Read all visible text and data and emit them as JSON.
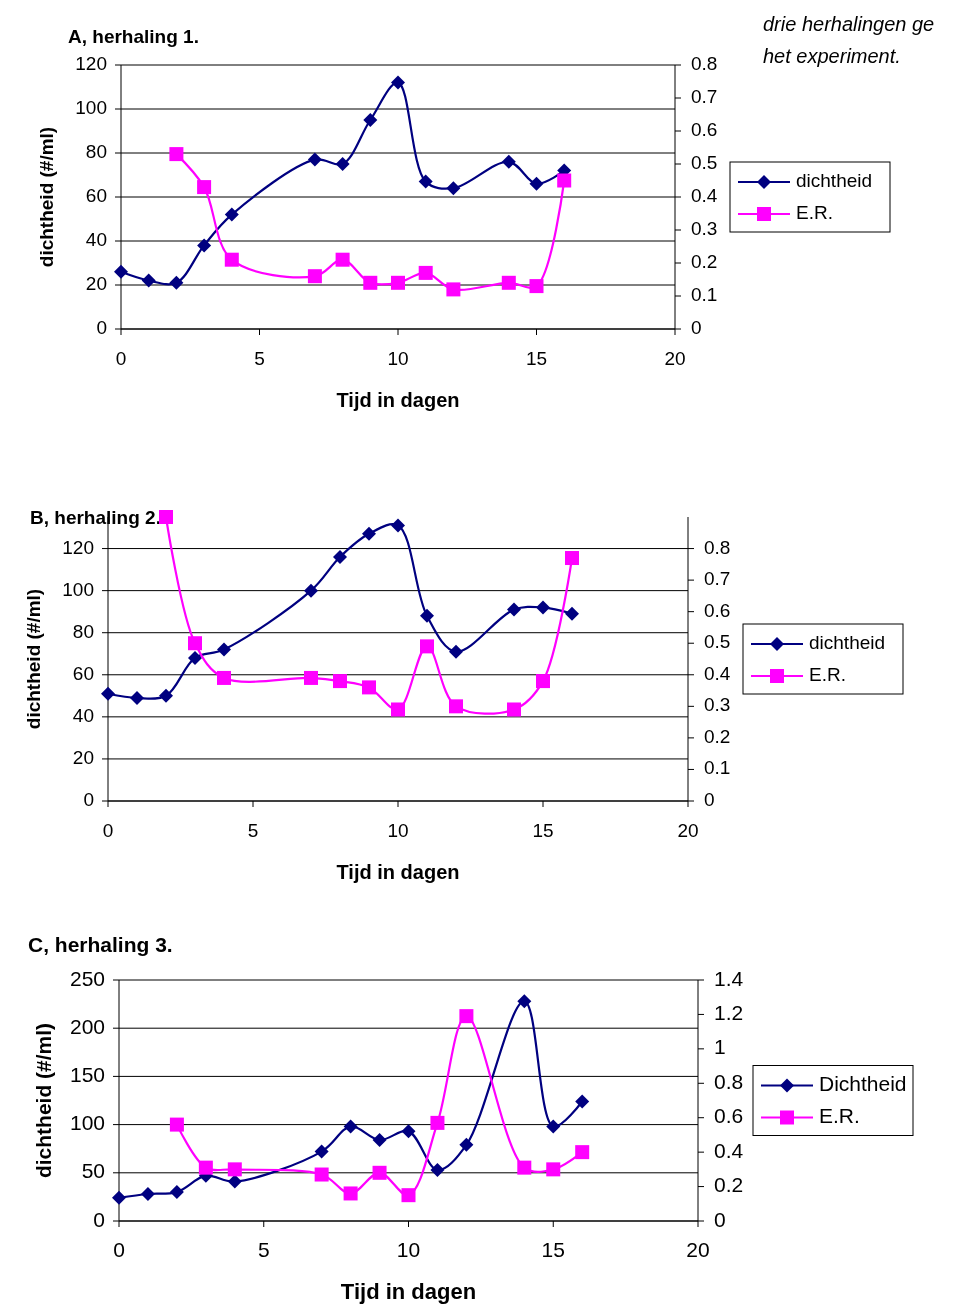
{
  "chart_data": [
    {
      "type": "line",
      "title": "A, herhaling 1.",
      "xlabel": "Tijd in dagen",
      "ylabel": "dichtheid (#/ml)",
      "annotations": [
        "drie herhalingen ge",
        "het experiment."
      ],
      "x": [
        0,
        1,
        2,
        3,
        4,
        7,
        8,
        9,
        10,
        11,
        12,
        14,
        15,
        16
      ],
      "series": [
        {
          "name": "dichtheid",
          "color": "#000080",
          "marker": "diamond",
          "values": [
            26,
            22,
            21,
            38,
            52,
            77,
            75,
            95,
            112,
            67,
            64,
            76,
            66,
            72
          ]
        },
        {
          "name": "E.R.",
          "color": "#ff00ff",
          "marker": "square",
          "axis": "y2",
          "values": [
            null,
            null,
            0.53,
            0.43,
            0.21,
            0.16,
            0.21,
            0.14,
            0.14,
            0.17,
            0.12,
            0.14,
            0.13,
            0.45
          ]
        }
      ],
      "xlim": [
        0,
        20
      ],
      "xticks": [
        0,
        5,
        10,
        15,
        20
      ],
      "ylim": [
        0,
        120
      ],
      "yticks": [
        0,
        20,
        40,
        60,
        80,
        100,
        120
      ],
      "y2lim": [
        0,
        0.8
      ],
      "y2ticks": [
        0,
        0.1,
        0.2,
        0.3,
        0.4,
        0.5,
        0.6,
        0.7,
        0.8
      ],
      "grid": "y",
      "legend": "right"
    },
    {
      "type": "line",
      "title": "B, herhaling 2.",
      "xlabel": "Tijd in dagen",
      "ylabel": "dichtheid (#/ml)",
      "x": [
        0,
        1,
        2,
        3,
        4,
        7,
        8,
        9,
        10,
        11,
        12,
        14,
        15,
        16
      ],
      "series": [
        {
          "name": "dichtheid",
          "color": "#000080",
          "marker": "diamond",
          "values": [
            51,
            49,
            50,
            68,
            72,
            100,
            116,
            127,
            131,
            88,
            71,
            91,
            92,
            89
          ]
        },
        {
          "name": "E.R.",
          "color": "#ff00ff",
          "marker": "square",
          "axis": "y2",
          "values": [
            null,
            null,
            0.9,
            0.5,
            0.39,
            0.39,
            0.38,
            0.36,
            0.29,
            0.49,
            0.3,
            0.29,
            0.38,
            0.77
          ]
        }
      ],
      "xlim": [
        0,
        20
      ],
      "xticks": [
        0,
        5,
        10,
        15,
        20
      ],
      "ylim": [
        0,
        135
      ],
      "yticks": [
        0,
        20,
        40,
        60,
        80,
        100,
        120
      ],
      "y2lim": [
        0,
        0.9
      ],
      "y2ticks": [
        0,
        0.1,
        0.2,
        0.3,
        0.4,
        0.5,
        0.6,
        0.7,
        0.8
      ],
      "grid": "y",
      "legend": "right"
    },
    {
      "type": "line",
      "title": "C, herhaling 3.",
      "xlabel": "Tijd in dagen",
      "ylabel": "dichtheid (#/ml)",
      "x": [
        0,
        1,
        2,
        3,
        4,
        7,
        8,
        9,
        10,
        11,
        12,
        14,
        15,
        16
      ],
      "series": [
        {
          "name": "Dichtheid",
          "color": "#000080",
          "marker": "diamond",
          "values": [
            24,
            28,
            30,
            47,
            41,
            72,
            98,
            84,
            93,
            53,
            79,
            228,
            98,
            124
          ]
        },
        {
          "name": "E.R.",
          "color": "#ff00ff",
          "marker": "square",
          "axis": "y2",
          "values": [
            null,
            null,
            0.56,
            0.31,
            0.3,
            0.27,
            0.16,
            0.28,
            0.15,
            0.57,
            1.19,
            0.31,
            0.3,
            0.4
          ]
        }
      ],
      "xlim": [
        0,
        20
      ],
      "xticks": [
        0,
        5,
        10,
        15,
        20
      ],
      "ylim": [
        0,
        250
      ],
      "yticks": [
        0,
        50,
        100,
        150,
        200,
        250
      ],
      "y2lim": [
        0,
        1.4
      ],
      "y2ticks": [
        0,
        0.2,
        0.4,
        0.6,
        0.8,
        1,
        1.2,
        1.4
      ],
      "grid": "y",
      "legend": "right"
    }
  ]
}
